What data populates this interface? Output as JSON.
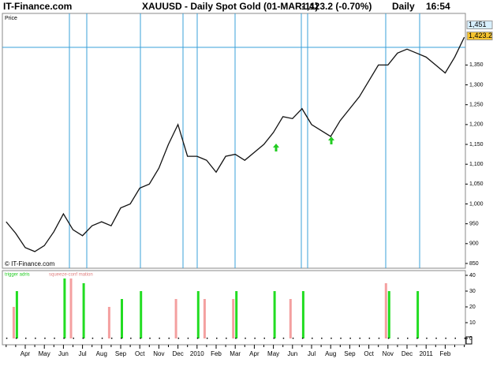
{
  "header": {
    "site": "IT-Finance.com",
    "title": "XAUUSD - Daily Spot Gold (01-MAR-11)",
    "quote": "1,423.2 (-0.70%)",
    "period": "Daily",
    "time": "16:54"
  },
  "chart_data": [
    {
      "type": "line",
      "panel_label": "Price",
      "source": "© IT-Finance.com",
      "categories": [
        null,
        null,
        "Apr",
        null,
        "May",
        null,
        "Jun",
        null,
        "Jul",
        null,
        "Aug",
        null,
        "Sep",
        null,
        "Oct",
        null,
        "Nov",
        null,
        "Dec",
        null,
        "2010",
        null,
        "Feb",
        null,
        "Mar",
        null,
        "Apr",
        null,
        "May",
        null,
        "Jun",
        null,
        "Jul",
        null,
        "Aug",
        null,
        "Sep",
        null,
        "Oct",
        null,
        "Nov",
        null,
        "Dec",
        null,
        "2011",
        null,
        "Feb",
        null,
        null
      ],
      "series": [
        {
          "name": "Price",
          "color": "#111111",
          "values": [
            955,
            926,
            890,
            880,
            895,
            930,
            975,
            935,
            920,
            945,
            955,
            945,
            990,
            1000,
            1040,
            1050,
            1090,
            1150,
            1200,
            1120,
            1120,
            1110,
            1080,
            1120,
            1125,
            1110,
            1130,
            1150,
            1180,
            1220,
            1215,
            1240,
            1200,
            1185,
            1170,
            1210,
            1240,
            1270,
            1310,
            1350,
            1350,
            1380,
            1390,
            1380,
            1370,
            1350,
            1330,
            1370,
            1420
          ]
        }
      ],
      "price_markers": [
        {
          "value": 1451,
          "label": "1,451"
        },
        {
          "value": 1423.2,
          "label": "1,423.2"
        }
      ],
      "ylim": [
        838,
        1480
      ],
      "yticks": [
        850,
        900,
        950,
        {
          "value": 1000,
          "label": "1,000"
        },
        {
          "value": 1050,
          "label": "1,050"
        },
        {
          "value": 1100,
          "label": "1,100"
        },
        {
          "value": 1150,
          "label": "1,150"
        },
        {
          "value": 1200,
          "label": "1,200"
        },
        {
          "value": 1250,
          "label": "1,250"
        },
        {
          "value": 1300,
          "label": "1,300"
        },
        {
          "value": 1350,
          "label": "1,350"
        }
      ]
    },
    {
      "type": "bar",
      "series": [
        {
          "name": "trigger adris",
          "color": "#22dd22",
          "values": [
            null,
            30,
            null,
            null,
            null,
            null,
            38,
            null,
            35,
            null,
            null,
            null,
            25,
            null,
            30,
            null,
            null,
            null,
            null,
            null,
            30,
            null,
            null,
            null,
            30,
            null,
            null,
            null,
            30,
            null,
            null,
            30,
            null,
            null,
            null,
            null,
            null,
            null,
            null,
            null,
            30,
            null,
            null,
            30,
            null,
            null,
            null,
            null,
            null
          ]
        },
        {
          "name": "squeeze-conf mation",
          "color": "#f4a0a0",
          "values": [
            null,
            20,
            null,
            null,
            null,
            null,
            null,
            38,
            null,
            null,
            null,
            20,
            null,
            null,
            null,
            null,
            null,
            null,
            25,
            null,
            null,
            25,
            null,
            null,
            25,
            null,
            null,
            null,
            null,
            null,
            25,
            null,
            null,
            null,
            null,
            null,
            null,
            null,
            null,
            null,
            35,
            null,
            null,
            null,
            null,
            null,
            null,
            null,
            null
          ]
        }
      ],
      "ylim": [
        -4,
        43
      ],
      "yticks": [
        0,
        10,
        20,
        30,
        40
      ]
    }
  ]
}
